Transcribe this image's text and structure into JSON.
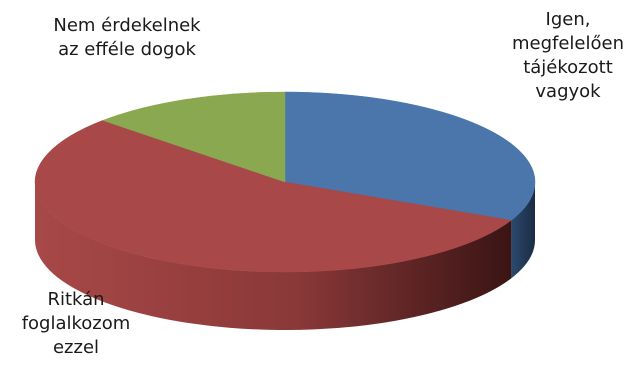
{
  "chart_data": {
    "type": "pie",
    "style": "3d",
    "values": [
      32,
      55,
      13
    ],
    "unit": "%",
    "slices": [
      {
        "label_lines": [
          "Igen,",
          "megfelelően",
          "tájékozott",
          "vagyok"
        ],
        "color": "#4a76ac",
        "side_color": "#27405e"
      },
      {
        "label_lines": [
          "Ritkán",
          "foglalkozom",
          "ezzel"
        ],
        "color": "#a84848",
        "side_color": "#6e2a2a"
      },
      {
        "label_lines": [
          "Nem érdekelnek",
          "az efféle dogok"
        ],
        "color": "#8aa84f",
        "side_color": "#5a6e32"
      }
    ]
  }
}
